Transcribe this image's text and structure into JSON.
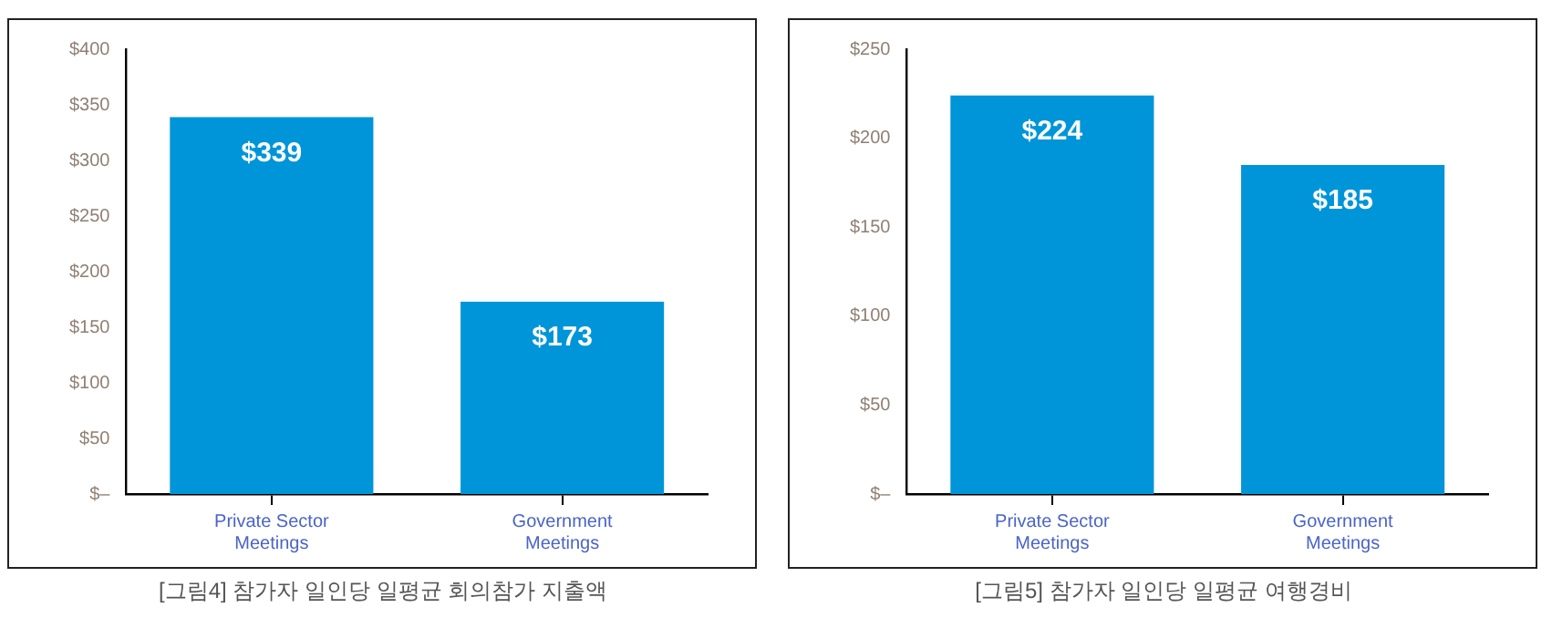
{
  "chart_data": [
    {
      "type": "bar",
      "title": "[그림4] 참가자 일인당 일평균 회의참가 지출액",
      "categories": [
        "Private Sector Meetings",
        "Government Meetings"
      ],
      "values": [
        339,
        173
      ],
      "color": "#0095d9",
      "ylim": [
        0,
        400
      ],
      "yticks": [
        {
          "value": 0,
          "label": "$–"
        },
        {
          "value": 50,
          "label": "$50"
        },
        {
          "value": 100,
          "label": "$100"
        },
        {
          "value": 150,
          "label": "$150"
        },
        {
          "value": 200,
          "label": "$200"
        },
        {
          "value": 250,
          "label": "$250"
        },
        {
          "value": 300,
          "label": "$300"
        },
        {
          "value": 350,
          "label": "$350"
        },
        {
          "value": 400,
          "label": "$400"
        }
      ],
      "value_labels": [
        "$339",
        "$173"
      ],
      "grid": false,
      "legend": false
    },
    {
      "type": "bar",
      "title": "[그림5] 참가자 일인당 일평균 여행경비",
      "categories": [
        "Private Sector Meetings",
        "Government Meetings"
      ],
      "values": [
        224,
        185
      ],
      "color": "#0095d9",
      "ylim": [
        0,
        250
      ],
      "yticks": [
        {
          "value": 0,
          "label": "$–"
        },
        {
          "value": 50,
          "label": "$50"
        },
        {
          "value": 100,
          "label": "$100"
        },
        {
          "value": 150,
          "label": "$150"
        },
        {
          "value": 200,
          "label": "$200"
        },
        {
          "value": 250,
          "label": "$250"
        }
      ],
      "value_labels": [
        "$224",
        "$185"
      ],
      "grid": false,
      "legend": false
    }
  ]
}
